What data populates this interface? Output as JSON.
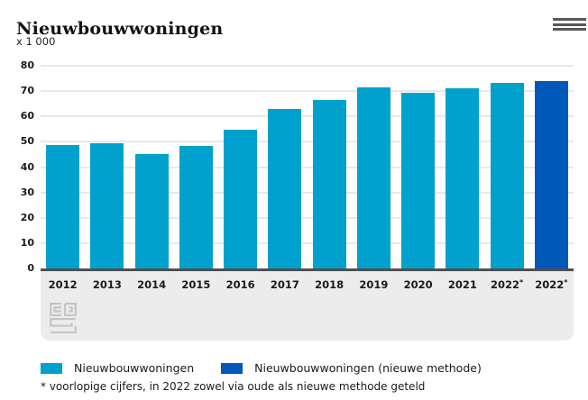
{
  "header": {
    "title": "Nieuwbouwwoningen",
    "unit_label": "x 1 000"
  },
  "chart_data": {
    "type": "bar",
    "title": "Nieuwbouwwoningen",
    "unit_label": "x 1 000",
    "categories": [
      "2012",
      "2013",
      "2014",
      "2015",
      "2016",
      "2017",
      "2018",
      "2019",
      "2020",
      "2021",
      "2022*",
      "2022*"
    ],
    "series": [
      {
        "name": "Nieuwbouwwoningen",
        "color": "#00a1cd",
        "values": [
          48.6,
          49.4,
          45.2,
          48.3,
          54.7,
          62.9,
          66.5,
          71.4,
          69.4,
          71.1,
          73.1,
          null
        ]
      },
      {
        "name": "Nieuwbouwwoningen (nieuwe methode)",
        "color": "#0058b8",
        "values": [
          null,
          null,
          null,
          null,
          null,
          null,
          null,
          null,
          null,
          null,
          null,
          73.8
        ]
      }
    ],
    "xlabel": "",
    "ylabel": "x 1 000",
    "ylim": [
      0,
      80
    ],
    "yticks": [
      0,
      10,
      20,
      30,
      40,
      50,
      60,
      70,
      80
    ],
    "grid": true,
    "legend_position": "bottom",
    "footnote": "* voorlopige cijfers, in 2022 zowel via oude als nieuwe methode geteld"
  },
  "legend": {
    "items": [
      {
        "label": "Nieuwbouwwoningen",
        "color": "#00a1cd"
      },
      {
        "label": "Nieuwbouwwoningen (nieuwe methode)",
        "color": "#0058b8"
      }
    ]
  },
  "footnote": "* voorlopige cijfers, in 2022 zowel via oude als nieuwe methode geteld",
  "icons": {
    "menu": "hamburger-menu-icon",
    "logo": "cbs-logo-icon"
  },
  "colors": {
    "bar_primary": "#00a1cd",
    "bar_secondary": "#0058b8",
    "gridline": "#e8e8e8",
    "axis_line": "#4f4f4f",
    "xband_bg": "#ececec",
    "logo_gray": "#c4c4c4",
    "menu_icon_gray": "#595959",
    "text": "#1a1a1a"
  }
}
